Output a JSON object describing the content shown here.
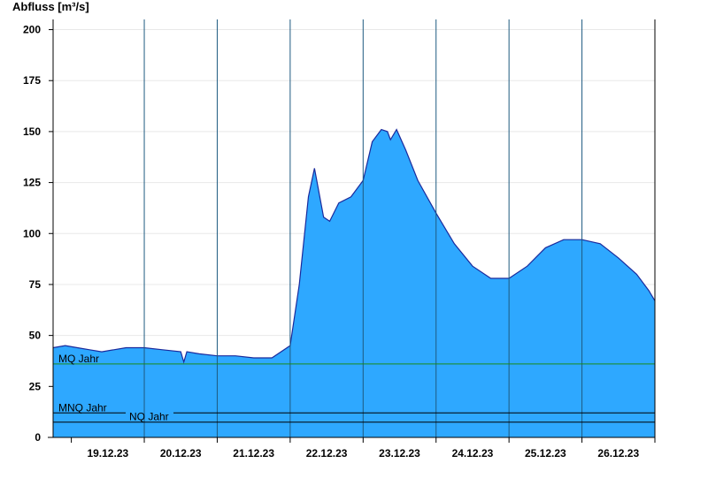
{
  "colors": {
    "area_fill": "#2ea8ff",
    "area_stroke": "#1a2a9c",
    "grid": "#e8e8e8",
    "day_line": "#1e5a80",
    "axis": "#000000",
    "mq_line": "#1a8a1a",
    "mnq_line": "#000000",
    "nq_line": "#000000"
  },
  "chart_data": {
    "type": "area",
    "title": "",
    "ylabel": "Abfluss [m³/s]",
    "xlabel": "",
    "ylim": [
      0,
      205
    ],
    "yticks": [
      0,
      25,
      50,
      75,
      100,
      125,
      150,
      175,
      200
    ],
    "x_range": [
      "18.12.23 18:00",
      "27.12.23 00:00"
    ],
    "day_ticks": [
      "19.12.23",
      "20.12.23",
      "21.12.23",
      "22.12.23",
      "23.12.23",
      "24.12.23",
      "25.12.23",
      "26.12.23"
    ],
    "grid": true,
    "legend": "none",
    "series": [
      {
        "x": [
          "18.12.23 18:00",
          "18.12.23 22:00",
          "19.12.23 02:00",
          "19.12.23 06:00",
          "19.12.23 10:00",
          "19.12.23 14:00",
          "19.12.23 18:00",
          "20.12.23 00:00",
          "20.12.23 06:00",
          "20.12.23 12:00",
          "20.12.23 13:00",
          "20.12.23 14:00",
          "20.12.23 18:00",
          "21.12.23 00:00",
          "21.12.23 06:00",
          "21.12.23 12:00",
          "21.12.23 18:00",
          "22.12.23 00:00",
          "22.12.23 03:00",
          "22.12.23 06:00",
          "22.12.23 08:00",
          "22.12.23 11:00",
          "22.12.23 13:00",
          "22.12.23 16:00",
          "22.12.23 20:00",
          "23.12.23 00:00",
          "23.12.23 03:00",
          "23.12.23 06:00",
          "23.12.23 08:00",
          "23.12.23 09:00",
          "23.12.23 11:00",
          "23.12.23 14:00",
          "23.12.23 18:00",
          "24.12.23 00:00",
          "24.12.23 06:00",
          "24.12.23 12:00",
          "24.12.23 18:00",
          "25.12.23 00:00",
          "25.12.23 06:00",
          "25.12.23 12:00",
          "25.12.23 18:00",
          "26.12.23 00:00",
          "26.12.23 06:00",
          "26.12.23 12:00",
          "26.12.23 18:00",
          "26.12.23 22:00",
          "27.12.23 00:00"
        ],
        "y": [
          44,
          45,
          44,
          43,
          42,
          43,
          44,
          44,
          43,
          42,
          37,
          42,
          41,
          40,
          40,
          39,
          39,
          45,
          75,
          118,
          132,
          108,
          106,
          115,
          118,
          126,
          145,
          151,
          150,
          146,
          151,
          141,
          126,
          110,
          95,
          84,
          78,
          78,
          84,
          93,
          97,
          97,
          95,
          88,
          80,
          72,
          67
        ]
      }
    ],
    "reference_lines": [
      {
        "label": "MQ Jahr",
        "value": 36
      },
      {
        "label": "MNQ Jahr",
        "value": 12
      },
      {
        "label": "NQ Jahr",
        "value": 7.5
      }
    ]
  }
}
